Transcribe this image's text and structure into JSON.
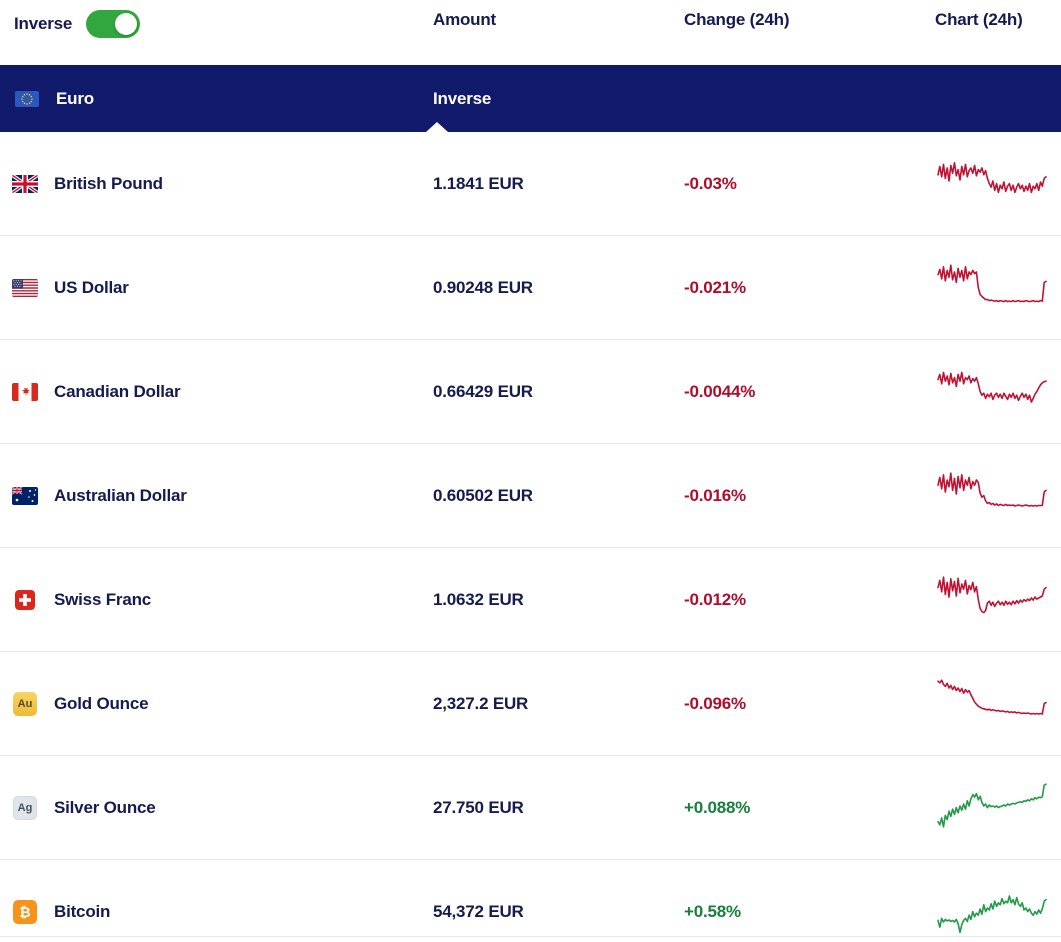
{
  "toolbar": {
    "inverse_toggle_label": "Inverse",
    "toggle_on": true
  },
  "columns": {
    "amount": "Amount",
    "change": "Change (24h)",
    "chart": "Chart (24h)"
  },
  "base_row": {
    "name": "Euro",
    "inverse_header": "Inverse"
  },
  "colors": {
    "header_bg": "#121A6B",
    "text_navy": "#151B4F",
    "down": "#AC0E2C",
    "up": "#17803C",
    "chart_down": "#C01334",
    "chart_up": "#219A46",
    "toggle_on": "#32A63F"
  },
  "rows": [
    {
      "name": "British Pound",
      "flag": "uk-flag",
      "amount": "1.1841 EUR",
      "change": "-0.03%",
      "direction": "down",
      "spark": [
        0.38,
        0.22,
        0.42,
        0.18,
        0.45,
        0.25,
        0.5,
        0.2,
        0.35,
        0.15,
        0.4,
        0.28,
        0.48,
        0.22,
        0.38,
        0.18,
        0.42,
        0.3,
        0.25,
        0.35,
        0.2,
        0.4,
        0.28,
        0.33,
        0.25,
        0.38,
        0.3,
        0.45,
        0.55,
        0.62,
        0.5,
        0.68,
        0.55,
        0.72,
        0.58,
        0.65,
        0.52,
        0.7,
        0.6,
        0.55,
        0.68,
        0.58,
        0.72,
        0.62,
        0.55,
        0.65,
        0.58,
        0.7,
        0.6,
        0.68,
        0.55,
        0.72,
        0.6,
        0.65,
        0.55,
        0.68,
        0.52,
        0.6,
        0.45,
        0.42
      ]
    },
    {
      "name": "US Dollar",
      "flag": "us-flag",
      "amount": "0.90248 EUR",
      "change": "-0.021%",
      "direction": "down",
      "spark": [
        0.3,
        0.2,
        0.38,
        0.15,
        0.42,
        0.22,
        0.35,
        0.12,
        0.4,
        0.25,
        0.45,
        0.18,
        0.35,
        0.22,
        0.42,
        0.15,
        0.38,
        0.25,
        0.3,
        0.22,
        0.28,
        0.25,
        0.55,
        0.68,
        0.72,
        0.75,
        0.78,
        0.78,
        0.8,
        0.79,
        0.8,
        0.81,
        0.8,
        0.82,
        0.8,
        0.81,
        0.82,
        0.8,
        0.82,
        0.81,
        0.82,
        0.8,
        0.82,
        0.81,
        0.8,
        0.82,
        0.81,
        0.82,
        0.8,
        0.81,
        0.82,
        0.81,
        0.8,
        0.82,
        0.81,
        0.82,
        0.8,
        0.81,
        0.45,
        0.43
      ]
    },
    {
      "name": "Canadian Dollar",
      "flag": "canada-flag",
      "amount": "0.66429 EUR",
      "change": "-0.0044%",
      "direction": "down",
      "spark": [
        0.32,
        0.22,
        0.4,
        0.18,
        0.35,
        0.25,
        0.42,
        0.2,
        0.38,
        0.28,
        0.45,
        0.22,
        0.35,
        0.18,
        0.4,
        0.28,
        0.32,
        0.25,
        0.38,
        0.3,
        0.35,
        0.28,
        0.4,
        0.55,
        0.62,
        0.58,
        0.68,
        0.6,
        0.65,
        0.58,
        0.7,
        0.62,
        0.58,
        0.66,
        0.6,
        0.68,
        0.58,
        0.64,
        0.7,
        0.6,
        0.66,
        0.58,
        0.68,
        0.62,
        0.72,
        0.64,
        0.58,
        0.66,
        0.6,
        0.7,
        0.62,
        0.75,
        0.68,
        0.6,
        0.55,
        0.48,
        0.42,
        0.38,
        0.36,
        0.35
      ]
    },
    {
      "name": "Australian Dollar",
      "flag": "australia-flag",
      "amount": "0.60502 EUR",
      "change": "-0.016%",
      "direction": "down",
      "spark": [
        0.35,
        0.2,
        0.42,
        0.15,
        0.48,
        0.25,
        0.38,
        0.12,
        0.45,
        0.22,
        0.52,
        0.18,
        0.4,
        0.15,
        0.45,
        0.25,
        0.35,
        0.2,
        0.42,
        0.28,
        0.35,
        0.25,
        0.3,
        0.5,
        0.58,
        0.55,
        0.65,
        0.7,
        0.68,
        0.72,
        0.7,
        0.73,
        0.71,
        0.74,
        0.72,
        0.73,
        0.74,
        0.72,
        0.74,
        0.73,
        0.74,
        0.73,
        0.75,
        0.74,
        0.73,
        0.74,
        0.75,
        0.74,
        0.73,
        0.74,
        0.75,
        0.74,
        0.75,
        0.74,
        0.75,
        0.74,
        0.74,
        0.74,
        0.48,
        0.45
      ]
    },
    {
      "name": "Swiss Franc",
      "flag": "switzerland-flag",
      "amount": "1.0632 EUR",
      "change": "-0.012%",
      "direction": "down",
      "spark": [
        0.32,
        0.18,
        0.4,
        0.12,
        0.45,
        0.22,
        0.5,
        0.15,
        0.38,
        0.2,
        0.48,
        0.14,
        0.42,
        0.25,
        0.35,
        0.18,
        0.44,
        0.28,
        0.36,
        0.22,
        0.4,
        0.3,
        0.55,
        0.72,
        0.78,
        0.8,
        0.76,
        0.62,
        0.58,
        0.66,
        0.6,
        0.68,
        0.62,
        0.58,
        0.65,
        0.6,
        0.66,
        0.58,
        0.64,
        0.6,
        0.65,
        0.58,
        0.63,
        0.57,
        0.62,
        0.56,
        0.6,
        0.55,
        0.58,
        0.54,
        0.57,
        0.52,
        0.56,
        0.5,
        0.54,
        0.52,
        0.5,
        0.48,
        0.35,
        0.32
      ]
    },
    {
      "name": "Gold Ounce",
      "badge": "Au",
      "amount": "2,327.2 EUR",
      "change": "-0.096%",
      "direction": "down",
      "spark": [
        0.12,
        0.15,
        0.1,
        0.18,
        0.22,
        0.16,
        0.25,
        0.2,
        0.28,
        0.22,
        0.3,
        0.25,
        0.32,
        0.26,
        0.35,
        0.28,
        0.33,
        0.3,
        0.38,
        0.45,
        0.52,
        0.56,
        0.6,
        0.62,
        0.64,
        0.65,
        0.66,
        0.67,
        0.66,
        0.68,
        0.67,
        0.68,
        0.69,
        0.68,
        0.7,
        0.69,
        0.7,
        0.71,
        0.7,
        0.72,
        0.71,
        0.72,
        0.71,
        0.73,
        0.72,
        0.73,
        0.74,
        0.73,
        0.74,
        0.73,
        0.74,
        0.75,
        0.74,
        0.75,
        0.74,
        0.75,
        0.74,
        0.75,
        0.55,
        0.53
      ]
    },
    {
      "name": "Silver Ounce",
      "badge": "Ag",
      "amount": "27.750 EUR",
      "change": "+0.088%",
      "direction": "up",
      "spark": [
        0.82,
        0.88,
        0.75,
        0.92,
        0.7,
        0.78,
        0.62,
        0.72,
        0.58,
        0.68,
        0.55,
        0.65,
        0.52,
        0.6,
        0.48,
        0.58,
        0.42,
        0.52,
        0.38,
        0.3,
        0.35,
        0.28,
        0.4,
        0.33,
        0.45,
        0.52,
        0.48,
        0.55,
        0.5,
        0.53,
        0.52,
        0.54,
        0.52,
        0.55,
        0.53,
        0.52,
        0.5,
        0.52,
        0.48,
        0.5,
        0.48,
        0.47,
        0.48,
        0.46,
        0.45,
        0.44,
        0.45,
        0.42,
        0.43,
        0.4,
        0.42,
        0.38,
        0.4,
        0.36,
        0.38,
        0.35,
        0.36,
        0.34,
        0.12,
        0.1
      ]
    },
    {
      "name": "Bitcoin",
      "badge": "₿",
      "amount": "54,372 EUR",
      "change": "+0.58%",
      "direction": "up",
      "spark": [
        0.72,
        0.85,
        0.68,
        0.75,
        0.7,
        0.73,
        0.71,
        0.74,
        0.72,
        0.75,
        0.7,
        0.78,
        0.95,
        0.8,
        0.72,
        0.68,
        0.74,
        0.62,
        0.7,
        0.55,
        0.65,
        0.58,
        0.62,
        0.5,
        0.6,
        0.42,
        0.55,
        0.48,
        0.52,
        0.4,
        0.5,
        0.35,
        0.45,
        0.38,
        0.42,
        0.3,
        0.4,
        0.35,
        0.38,
        0.25,
        0.38,
        0.32,
        0.42,
        0.28,
        0.4,
        0.45,
        0.38,
        0.52,
        0.48,
        0.55,
        0.5,
        0.58,
        0.62,
        0.55,
        0.6,
        0.52,
        0.58,
        0.5,
        0.35,
        0.32
      ]
    }
  ]
}
